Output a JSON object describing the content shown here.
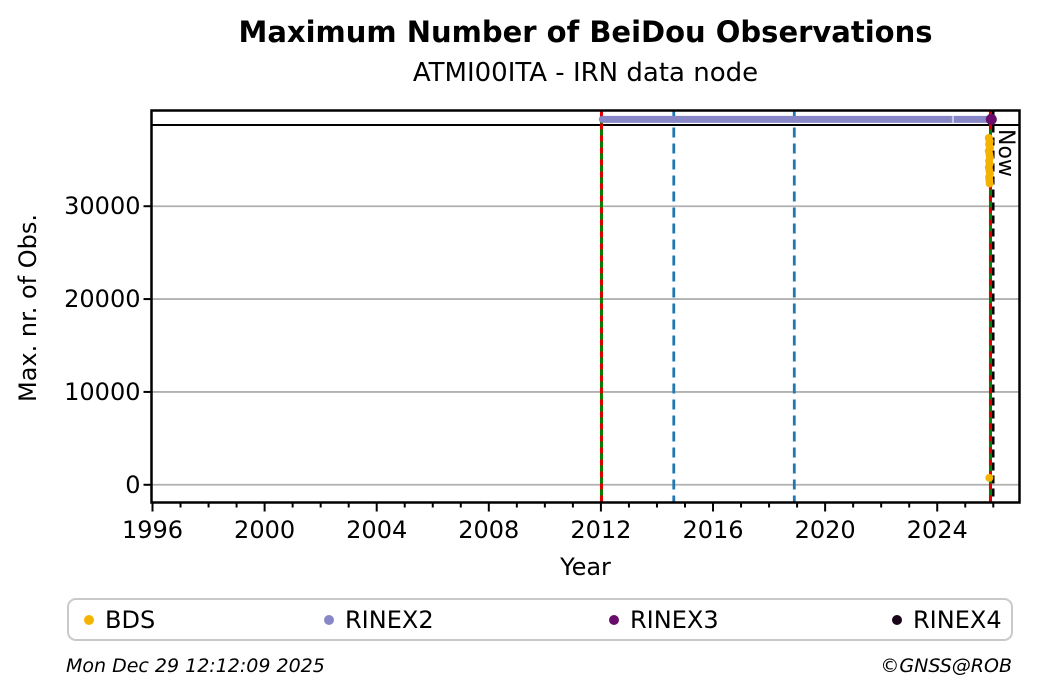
{
  "title": "Maximum Number of BeiDou Observations",
  "subtitle": "ATMI00ITA - IRN data node",
  "footer": {
    "timestamp": "Mon Dec 29 12:12:09 2025",
    "credit": "©GNSS@ROB"
  },
  "chart_data": {
    "type": "line",
    "title": "Maximum Number of BeiDou Observations",
    "subtitle": "ATMI00ITA - IRN data node",
    "xlabel": "Year",
    "ylabel": "Max. nr. of Obs.",
    "xlim": [
      1996,
      2026.9
    ],
    "ylim": [
      -1800,
      40200
    ],
    "x_major_ticks": [
      1996,
      2000,
      2004,
      2008,
      2012,
      2016,
      2020,
      2024
    ],
    "x_minor_step": 1,
    "y_ticks": [
      0,
      10000,
      20000,
      30000
    ],
    "grid": "horizontal",
    "legend_position": "bottom",
    "now_label": "Now",
    "colors": {
      "bds": "#f5b301",
      "rinex2": "#8787c8",
      "rinex3": "#6a0d6a",
      "rinex4": "#1a051a",
      "event_green": "#008000",
      "event_red": "#dd0000",
      "maintenance_blue": "#1f77b4",
      "now_line": "#000000",
      "max_line": "#000000",
      "grid": "#b0b0b0"
    },
    "series": [
      {
        "name": "theoretical-max-line",
        "type": "hline",
        "y": 38750,
        "color_key": "max_line",
        "stroke_width": 2
      },
      {
        "name": "RINEX2",
        "type": "segment",
        "y": 39350,
        "x_start": 2012.05,
        "x_end": 2025.93,
        "color_key": "rinex2",
        "stroke_width": 7,
        "light_gap_x": 2024.56
      },
      {
        "name": "RINEX3",
        "type": "point",
        "x": 2025.93,
        "y": 39350,
        "r": 5.5,
        "color_key": "rinex3"
      },
      {
        "name": "BDS",
        "type": "scatter",
        "r": 4,
        "color_key": "bds",
        "points": [
          [
            2025.84,
            37350
          ],
          [
            2025.87,
            37000
          ],
          [
            2025.85,
            36650
          ],
          [
            2025.88,
            36300
          ],
          [
            2025.84,
            35950
          ],
          [
            2025.86,
            35600
          ],
          [
            2025.88,
            35250
          ],
          [
            2025.85,
            34900
          ],
          [
            2025.87,
            34550
          ],
          [
            2025.84,
            34200
          ],
          [
            2025.86,
            33850
          ],
          [
            2025.88,
            33500
          ],
          [
            2025.85,
            33150
          ],
          [
            2025.86,
            32800
          ],
          [
            2025.87,
            32450
          ],
          [
            2025.86,
            750
          ]
        ]
      }
    ],
    "event_lines": [
      {
        "x": 2012.02,
        "style": "green_red"
      },
      {
        "x": 2014.6,
        "style": "blue_dashed"
      },
      {
        "x": 2018.9,
        "style": "blue_dashed"
      },
      {
        "x": 2025.9,
        "style": "green_red"
      },
      {
        "x": 2026.0,
        "style": "now"
      }
    ],
    "legend": [
      {
        "label": "BDS",
        "color_key": "bds"
      },
      {
        "label": "RINEX2",
        "color_key": "rinex2"
      },
      {
        "label": "RINEX3",
        "color_key": "rinex3"
      },
      {
        "label": "RINEX4",
        "color_key": "rinex4"
      }
    ]
  }
}
